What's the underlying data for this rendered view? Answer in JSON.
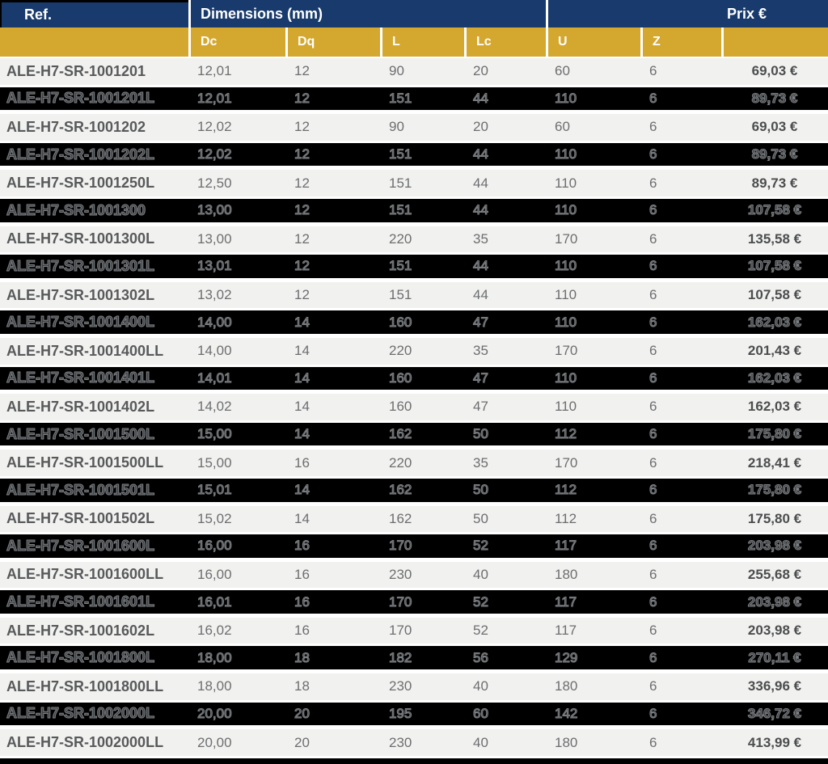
{
  "header": {
    "ref_label": "Ref.",
    "dimensions_label": "Dimensions (mm)",
    "prix_label": "Prix €"
  },
  "subheader": {
    "dc": "Dc",
    "dq": "Dq",
    "l": "L",
    "lc": "Lc",
    "u": "U",
    "z": "Z"
  },
  "colors": {
    "header_navy": "#183a6c",
    "subheader_gold": "#d4a72e",
    "row_light": "#f1f1ef",
    "row_dark": "#000000",
    "text_gray": "#6d6e70",
    "ref_text": "#58595b"
  },
  "rows": [
    {
      "ref": "ALE-H7-SR-1001201",
      "dc": "12,01",
      "dq": "12",
      "l": "90",
      "lc": "20",
      "u": "60",
      "z": "6",
      "prix": "69,03 €"
    },
    {
      "ref": "ALE-H7-SR-1001201L",
      "dc": "12,01",
      "dq": "12",
      "l": "151",
      "lc": "44",
      "u": "110",
      "z": "6",
      "prix": "89,73 €"
    },
    {
      "ref": "ALE-H7-SR-1001202",
      "dc": "12,02",
      "dq": "12",
      "l": "90",
      "lc": "20",
      "u": "60",
      "z": "6",
      "prix": "69,03 €"
    },
    {
      "ref": "ALE-H7-SR-1001202L",
      "dc": "12,02",
      "dq": "12",
      "l": "151",
      "lc": "44",
      "u": "110",
      "z": "6",
      "prix": "89,73 €"
    },
    {
      "ref": "ALE-H7-SR-1001250L",
      "dc": "12,50",
      "dq": "12",
      "l": "151",
      "lc": "44",
      "u": "110",
      "z": "6",
      "prix": "89,73 €"
    },
    {
      "ref": "ALE-H7-SR-1001300",
      "dc": "13,00",
      "dq": "12",
      "l": "151",
      "lc": "44",
      "u": "110",
      "z": "6",
      "prix": "107,58 €"
    },
    {
      "ref": "ALE-H7-SR-1001300L",
      "dc": "13,00",
      "dq": "12",
      "l": "220",
      "lc": "35",
      "u": "170",
      "z": "6",
      "prix": "135,58 €"
    },
    {
      "ref": "ALE-H7-SR-1001301L",
      "dc": "13,01",
      "dq": "12",
      "l": "151",
      "lc": "44",
      "u": "110",
      "z": "6",
      "prix": "107,58 €"
    },
    {
      "ref": "ALE-H7-SR-1001302L",
      "dc": "13,02",
      "dq": "12",
      "l": "151",
      "lc": "44",
      "u": "110",
      "z": "6",
      "prix": "107,58 €"
    },
    {
      "ref": "ALE-H7-SR-1001400L",
      "dc": "14,00",
      "dq": "14",
      "l": "160",
      "lc": "47",
      "u": "110",
      "z": "6",
      "prix": "162,03 €"
    },
    {
      "ref": "ALE-H7-SR-1001400LL",
      "dc": "14,00",
      "dq": "14",
      "l": "220",
      "lc": "35",
      "u": "170",
      "z": "6",
      "prix": "201,43 €"
    },
    {
      "ref": "ALE-H7-SR-1001401L",
      "dc": "14,01",
      "dq": "14",
      "l": "160",
      "lc": "47",
      "u": "110",
      "z": "6",
      "prix": "162,03 €"
    },
    {
      "ref": "ALE-H7-SR-1001402L",
      "dc": "14,02",
      "dq": "14",
      "l": "160",
      "lc": "47",
      "u": "110",
      "z": "6",
      "prix": "162,03 €"
    },
    {
      "ref": "ALE-H7-SR-1001500L",
      "dc": "15,00",
      "dq": "14",
      "l": "162",
      "lc": "50",
      "u": "112",
      "z": "6",
      "prix": "175,80 €"
    },
    {
      "ref": "ALE-H7-SR-1001500LL",
      "dc": "15,00",
      "dq": "16",
      "l": "220",
      "lc": "35",
      "u": "170",
      "z": "6",
      "prix": "218,41 €"
    },
    {
      "ref": "ALE-H7-SR-1001501L",
      "dc": "15,01",
      "dq": "14",
      "l": "162",
      "lc": "50",
      "u": "112",
      "z": "6",
      "prix": "175,80 €"
    },
    {
      "ref": "ALE-H7-SR-1001502L",
      "dc": "15,02",
      "dq": "14",
      "l": "162",
      "lc": "50",
      "u": "112",
      "z": "6",
      "prix": "175,80 €"
    },
    {
      "ref": "ALE-H7-SR-1001600L",
      "dc": "16,00",
      "dq": "16",
      "l": "170",
      "lc": "52",
      "u": "117",
      "z": "6",
      "prix": "203,98 €"
    },
    {
      "ref": "ALE-H7-SR-1001600LL",
      "dc": "16,00",
      "dq": "16",
      "l": "230",
      "lc": "40",
      "u": "180",
      "z": "6",
      "prix": "255,68 €"
    },
    {
      "ref": "ALE-H7-SR-1001601L",
      "dc": "16,01",
      "dq": "16",
      "l": "170",
      "lc": "52",
      "u": "117",
      "z": "6",
      "prix": "203,98 €"
    },
    {
      "ref": "ALE-H7-SR-1001602L",
      "dc": "16,02",
      "dq": "16",
      "l": "170",
      "lc": "52",
      "u": "117",
      "z": "6",
      "prix": "203,98 €"
    },
    {
      "ref": "ALE-H7-SR-1001800L",
      "dc": "18,00",
      "dq": "18",
      "l": "182",
      "lc": "56",
      "u": "129",
      "z": "6",
      "prix": "270,11 €"
    },
    {
      "ref": "ALE-H7-SR-1001800LL",
      "dc": "18,00",
      "dq": "18",
      "l": "230",
      "lc": "40",
      "u": "180",
      "z": "6",
      "prix": "336,96 €"
    },
    {
      "ref": "ALE-H7-SR-1002000L",
      "dc": "20,00",
      "dq": "20",
      "l": "195",
      "lc": "60",
      "u": "142",
      "z": "6",
      "prix": "346,72 €"
    },
    {
      "ref": "ALE-H7-SR-1002000LL",
      "dc": "20,00",
      "dq": "20",
      "l": "230",
      "lc": "40",
      "u": "180",
      "z": "6",
      "prix": "413,99 €"
    }
  ]
}
